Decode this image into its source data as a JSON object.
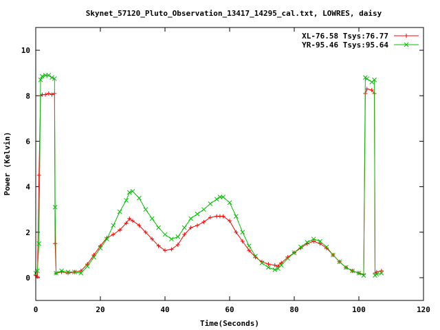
{
  "chart_data": {
    "type": "line",
    "title": "Skynet_57120_Pluto_Observation_13417_14295_cal.txt, LOWRES, daisy",
    "xlabel": "Time(Seconds)",
    "ylabel": "Power (Kelvin)",
    "xlim": [
      0,
      120
    ],
    "ylim": [
      -1,
      11
    ],
    "x_ticks": [
      0,
      20,
      40,
      60,
      80,
      100,
      120
    ],
    "x_tick_labels": [
      "0",
      "20",
      "40",
      "60",
      "80",
      "100",
      "120"
    ],
    "y_ticks": [
      0,
      2,
      4,
      6,
      8,
      10
    ],
    "y_tick_labels": [
      "0",
      "2",
      "4",
      "6",
      "8",
      "10"
    ],
    "grid": false,
    "legend_position": "top-right",
    "series": [
      {
        "name": "XL-76.58 Tsys:76.77",
        "color": "#ff0000",
        "marker": "plus",
        "x": [
          0,
          0.5,
          1,
          1.5,
          2,
          3,
          4,
          5,
          5.8,
          6,
          6.3,
          8,
          10,
          12,
          14,
          16,
          18,
          20,
          22,
          24,
          26,
          28,
          29,
          30,
          32,
          34,
          36,
          38,
          40,
          42,
          44,
          46,
          48,
          50,
          52,
          54,
          56,
          57,
          58,
          60,
          62,
          64,
          66,
          68,
          70,
          72,
          74,
          75,
          76,
          78,
          80,
          82,
          84,
          86,
          88,
          90,
          92,
          94,
          96,
          98,
          100,
          101.5,
          102,
          102.5,
          104,
          104.8,
          105,
          105.5,
          107
        ],
        "y": [
          0.1,
          0.05,
          4.5,
          8.0,
          8.05,
          8.05,
          8.1,
          8.05,
          8.1,
          1.5,
          0.2,
          0.25,
          0.2,
          0.25,
          0.3,
          0.6,
          1.0,
          1.4,
          1.75,
          1.9,
          2.1,
          2.4,
          2.6,
          2.5,
          2.3,
          2.0,
          1.7,
          1.4,
          1.2,
          1.25,
          1.45,
          1.9,
          2.2,
          2.3,
          2.45,
          2.65,
          2.7,
          2.7,
          2.7,
          2.5,
          2.0,
          1.6,
          1.2,
          0.9,
          0.7,
          0.6,
          0.55,
          0.5,
          0.65,
          0.9,
          1.1,
          1.3,
          1.5,
          1.6,
          1.5,
          1.3,
          1.0,
          0.7,
          0.45,
          0.3,
          0.2,
          0.15,
          8.1,
          8.3,
          8.25,
          8.1,
          0.2,
          0.25,
          0.3
        ]
      },
      {
        "name": "YR-95.46 Tsys:95.64",
        "color": "#00c000",
        "marker": "cross",
        "x": [
          0,
          0.5,
          1,
          1.5,
          2,
          3,
          4,
          5,
          5.8,
          6,
          6.3,
          8,
          10,
          12,
          14,
          16,
          18,
          20,
          22,
          24,
          26,
          28,
          29,
          30,
          32,
          34,
          36,
          38,
          40,
          42,
          44,
          46,
          48,
          50,
          52,
          54,
          56,
          57,
          58,
          60,
          62,
          64,
          66,
          68,
          70,
          72,
          74,
          75,
          76,
          78,
          80,
          82,
          84,
          86,
          88,
          90,
          92,
          94,
          96,
          98,
          100,
          101.5,
          102,
          102.5,
          104,
          104.8,
          105,
          105.5,
          107
        ],
        "y": [
          0.2,
          0.3,
          1.5,
          8.7,
          8.85,
          8.9,
          8.9,
          8.8,
          8.75,
          3.1,
          0.2,
          0.3,
          0.25,
          0.25,
          0.2,
          0.5,
          0.9,
          1.3,
          1.7,
          2.3,
          2.9,
          3.4,
          3.75,
          3.8,
          3.5,
          3.0,
          2.6,
          2.2,
          1.9,
          1.7,
          1.8,
          2.2,
          2.6,
          2.8,
          3.0,
          3.25,
          3.45,
          3.55,
          3.55,
          3.3,
          2.7,
          2.0,
          1.4,
          0.95,
          0.65,
          0.45,
          0.35,
          0.4,
          0.55,
          0.85,
          1.1,
          1.35,
          1.55,
          1.7,
          1.6,
          1.35,
          1.0,
          0.7,
          0.45,
          0.3,
          0.2,
          0.1,
          8.8,
          8.75,
          8.6,
          8.7,
          0.1,
          0.15,
          0.2
        ]
      }
    ]
  }
}
